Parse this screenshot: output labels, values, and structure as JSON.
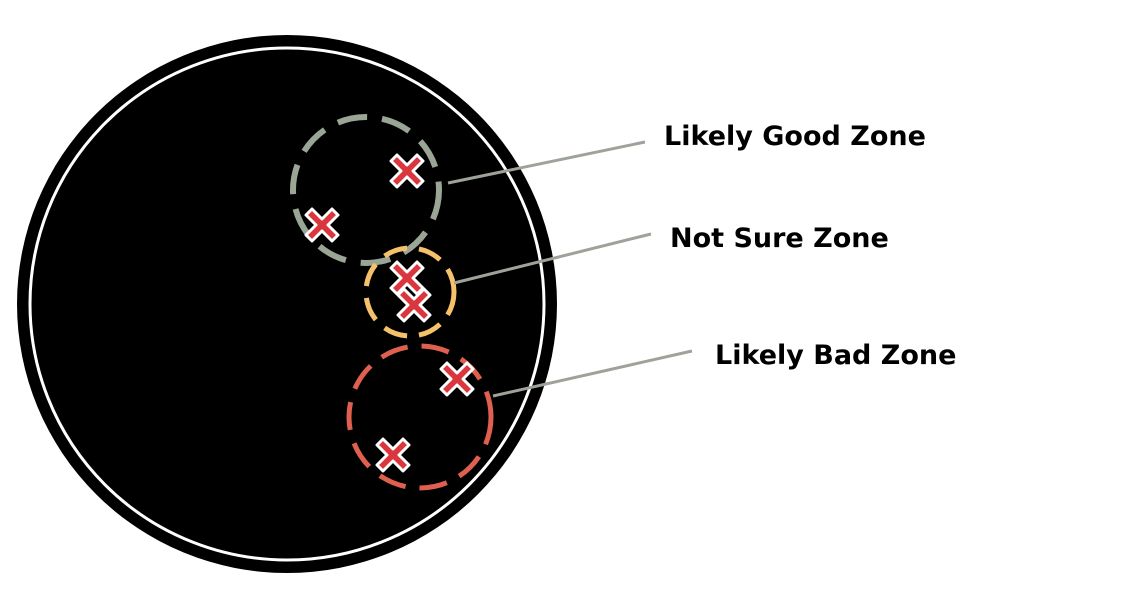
{
  "zones": [
    {
      "key": "good",
      "label": "Likely Good Zone",
      "color": "#9aa596"
    },
    {
      "key": "unsure",
      "label": "Not Sure Zone",
      "color": "#f5c26b"
    },
    {
      "key": "bad",
      "label": "Likely Bad Zone",
      "color": "#e0604f"
    }
  ],
  "marker_counts": {
    "good": 2,
    "unsure": 2,
    "bad": 2
  },
  "colors": {
    "plate": "#000000",
    "plate_ring": "#ffffff",
    "marker_fill": "#d9363e",
    "marker_outline": "#ffffff",
    "leader_line": "#9ea39a"
  },
  "icons": {
    "marker": "x-mark-icon"
  }
}
